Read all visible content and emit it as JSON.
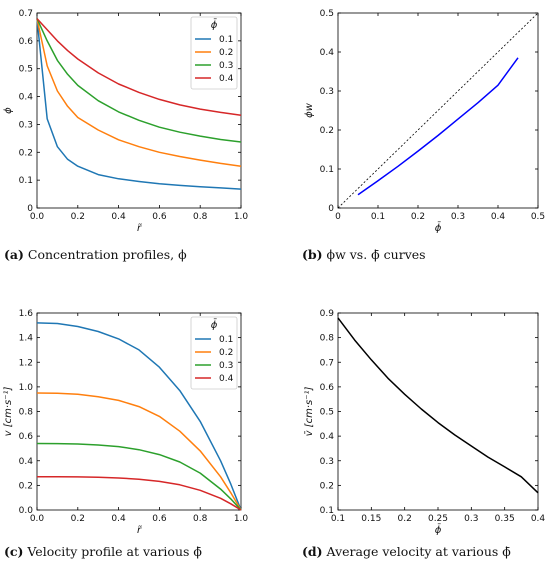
{
  "captions": [
    {
      "letter": "(a)",
      "text": " Concentration profiles, ϕ"
    },
    {
      "letter": "(b)",
      "text": " ϕw vs. ϕ̄ curves"
    },
    {
      "letter": "(c)",
      "text": " Velocity profile at various ϕ̄"
    },
    {
      "letter": "(d)",
      "text": " Average velocity at various ϕ̄"
    }
  ],
  "chart_data": [
    {
      "id": "a",
      "type": "line",
      "title": "",
      "xlabel": "r̃",
      "ylabel": "ϕ",
      "xlim": [
        0,
        1.0
      ],
      "ylim": [
        0,
        0.7
      ],
      "xticks": [
        "0.0",
        "0.2",
        "0.4",
        "0.6",
        "0.8",
        "1.0"
      ],
      "yticks": [
        "0",
        "0.1",
        "0.2",
        "0.3",
        "0.4",
        "0.5",
        "0.6",
        "0.7"
      ],
      "legend_title": "ϕ̄",
      "legend_position": "top-right",
      "x": [
        0.0,
        0.05,
        0.1,
        0.15,
        0.2,
        0.3,
        0.4,
        0.5,
        0.6,
        0.7,
        0.8,
        0.9,
        1.0
      ],
      "series": [
        {
          "name": "0.1",
          "color": "#1f77b4",
          "values": [
            0.68,
            0.32,
            0.22,
            0.175,
            0.15,
            0.12,
            0.105,
            0.095,
            0.087,
            0.081,
            0.076,
            0.072,
            0.068
          ]
        },
        {
          "name": "0.2",
          "color": "#ff7f0e",
          "values": [
            0.68,
            0.51,
            0.42,
            0.365,
            0.325,
            0.28,
            0.245,
            0.22,
            0.2,
            0.185,
            0.172,
            0.16,
            0.15
          ]
        },
        {
          "name": "0.3",
          "color": "#2ca02c",
          "values": [
            0.68,
            0.6,
            0.53,
            0.48,
            0.44,
            0.385,
            0.345,
            0.315,
            0.29,
            0.272,
            0.258,
            0.246,
            0.237
          ]
        },
        {
          "name": "0.4",
          "color": "#d62728",
          "values": [
            0.68,
            0.64,
            0.6,
            0.565,
            0.535,
            0.485,
            0.445,
            0.415,
            0.39,
            0.37,
            0.355,
            0.343,
            0.333
          ]
        }
      ]
    },
    {
      "id": "b",
      "type": "line",
      "title": "",
      "xlabel": "ϕ̄",
      "ylabel": "ϕw",
      "xlim": [
        0,
        0.5
      ],
      "ylim": [
        0,
        0.5
      ],
      "xticks": [
        "0",
        "0.1",
        "0.2",
        "0.3",
        "0.4",
        "0.5"
      ],
      "yticks": [
        "0",
        "0.1",
        "0.2",
        "0.3",
        "0.4",
        "0.5"
      ],
      "series": [
        {
          "name": "",
          "color": "#000000",
          "dashed": true,
          "x": [
            0,
            0.5
          ],
          "values": [
            0,
            0.5
          ]
        },
        {
          "name": "",
          "color": "#0000ff",
          "dashed": false,
          "x": [
            0.05,
            0.1,
            0.15,
            0.2,
            0.25,
            0.3,
            0.35,
            0.4,
            0.45
          ],
          "values": [
            0.034,
            0.07,
            0.107,
            0.146,
            0.186,
            0.228,
            0.27,
            0.315,
            0.385
          ]
        }
      ]
    },
    {
      "id": "c",
      "type": "line",
      "title": "",
      "xlabel": "r̃",
      "ylabel": "v [cm·s⁻¹]",
      "xlim": [
        0,
        1.0
      ],
      "ylim": [
        0,
        1.6
      ],
      "xticks": [
        "0.0",
        "0.2",
        "0.4",
        "0.6",
        "0.8",
        "1.0"
      ],
      "yticks": [
        "0.0",
        "0.2",
        "0.4",
        "0.6",
        "0.8",
        "1.0",
        "1.2",
        "1.4",
        "1.6"
      ],
      "legend_title": "ϕ̄",
      "legend_position": "top-right",
      "x": [
        0.0,
        0.1,
        0.2,
        0.3,
        0.4,
        0.5,
        0.6,
        0.7,
        0.8,
        0.9,
        0.95,
        1.0
      ],
      "series": [
        {
          "name": "0.1",
          "color": "#1f77b4",
          "values": [
            1.52,
            1.515,
            1.49,
            1.45,
            1.39,
            1.3,
            1.16,
            0.97,
            0.72,
            0.4,
            0.21,
            0.0
          ]
        },
        {
          "name": "0.2",
          "color": "#ff7f0e",
          "values": [
            0.95,
            0.948,
            0.94,
            0.92,
            0.89,
            0.84,
            0.76,
            0.64,
            0.48,
            0.27,
            0.14,
            0.0
          ]
        },
        {
          "name": "0.3",
          "color": "#2ca02c",
          "values": [
            0.54,
            0.539,
            0.536,
            0.528,
            0.515,
            0.49,
            0.45,
            0.39,
            0.3,
            0.17,
            0.09,
            0.0
          ]
        },
        {
          "name": "0.4",
          "color": "#d62728",
          "values": [
            0.27,
            0.27,
            0.269,
            0.266,
            0.26,
            0.25,
            0.232,
            0.205,
            0.16,
            0.095,
            0.05,
            0.0
          ]
        }
      ]
    },
    {
      "id": "d",
      "type": "line",
      "title": "",
      "xlabel": "ϕ̄",
      "ylabel": "v̄ [cm·s⁻¹]",
      "xlim": [
        0.1,
        0.4
      ],
      "ylim": [
        0.1,
        0.9
      ],
      "xticks": [
        "0.1",
        "0.15",
        "0.2",
        "0.25",
        "0.3",
        "0.35",
        "0.4"
      ],
      "yticks": [
        "0.1",
        "0.2",
        "0.3",
        "0.4",
        "0.5",
        "0.6",
        "0.7",
        "0.8",
        "0.9"
      ],
      "series": [
        {
          "name": "",
          "color": "#000000",
          "x": [
            0.1,
            0.125,
            0.15,
            0.175,
            0.2,
            0.225,
            0.25,
            0.275,
            0.3,
            0.325,
            0.35,
            0.375,
            0.4
          ],
          "values": [
            0.88,
            0.79,
            0.71,
            0.635,
            0.57,
            0.51,
            0.455,
            0.405,
            0.36,
            0.315,
            0.275,
            0.235,
            0.17
          ]
        }
      ]
    }
  ]
}
